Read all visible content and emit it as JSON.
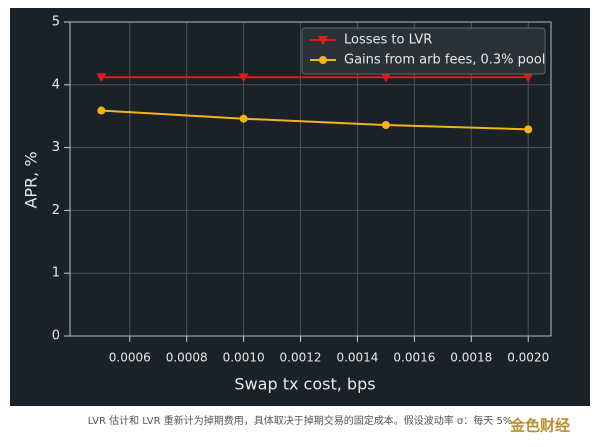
{
  "chart_data": {
    "type": "line",
    "x_label": "Swap tx cost, bps",
    "y_label": "APR, %",
    "x": [
      0.0005,
      0.001,
      0.0015,
      0.002
    ],
    "series": [
      {
        "name": "Losses to LVR",
        "color": "#e01b1b",
        "marker": "triangle-down",
        "values": [
          4.12,
          4.12,
          4.12,
          4.12
        ]
      },
      {
        "name": "Gains from arb fees, 0.3% pool",
        "color": "#f4b41a",
        "marker": "circle",
        "values": [
          3.59,
          3.46,
          3.36,
          3.29
        ]
      }
    ],
    "xlim": [
      0.00039,
      0.00208
    ],
    "ylim": [
      0,
      5
    ],
    "xticks": [
      0.0006,
      0.0008,
      {
        "value": 0.001,
        "label": "0.0010"
      },
      {
        "value": 0.0012,
        "label": "0.0012"
      },
      {
        "value": 0.0014,
        "label": "0.0014"
      },
      {
        "value": 0.0016,
        "label": "0.0016"
      },
      {
        "value": 0.0018,
        "label": "0.0018"
      },
      {
        "value": 0.002,
        "label": "0.0020"
      }
    ],
    "yticks": [
      0,
      1,
      2,
      3,
      4,
      5
    ],
    "grid": true,
    "legend": "upper right"
  },
  "caption": "LVR 估计和 LVR 重新计为掉期费用，具体取决于掉期交易的固定成本。假设波动率 σ：每天 5%",
  "watermark": "金色财经"
}
